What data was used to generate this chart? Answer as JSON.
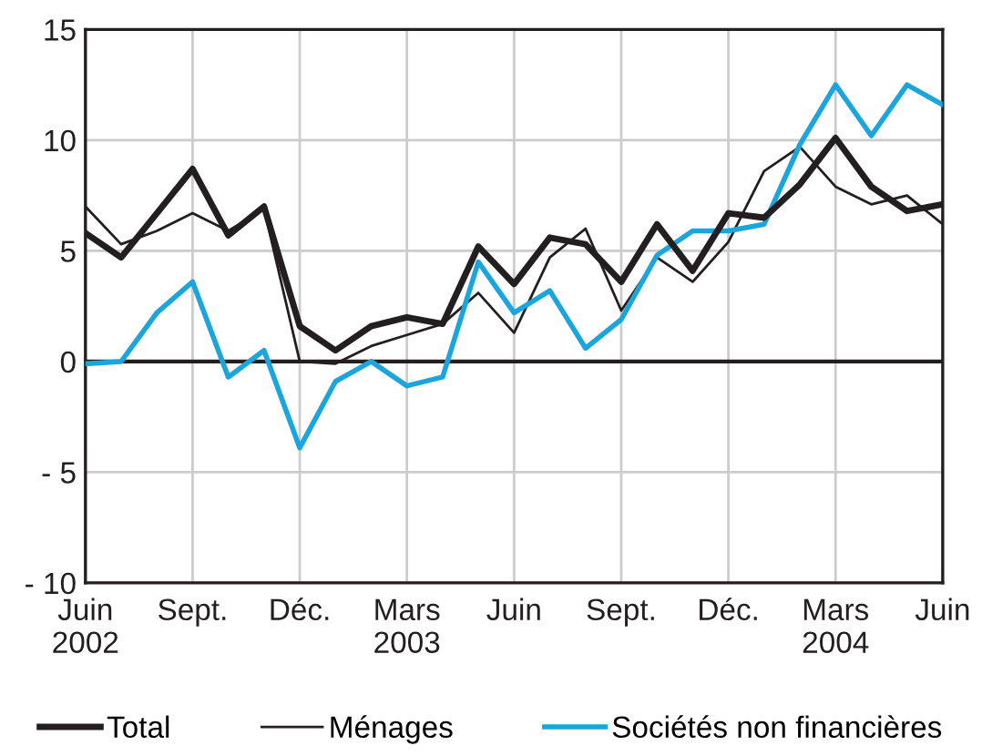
{
  "chart_data": {
    "type": "line",
    "x": [
      "2002-06",
      "2002-07",
      "2002-08",
      "2002-09",
      "2002-10",
      "2002-11",
      "2002-12",
      "2003-01",
      "2003-02",
      "2003-03",
      "2003-04",
      "2003-05",
      "2003-06",
      "2003-07",
      "2003-08",
      "2003-09",
      "2003-10",
      "2003-11",
      "2003-12",
      "2004-01",
      "2004-02",
      "2004-03",
      "2004-04",
      "2004-05",
      "2004-06"
    ],
    "series": [
      {
        "name": "Total",
        "color": "#231f20",
        "values": [
          5.8,
          4.7,
          6.7,
          8.7,
          5.7,
          7.0,
          1.6,
          0.5,
          1.6,
          2.0,
          1.7,
          5.2,
          3.5,
          5.6,
          5.3,
          3.6,
          6.2,
          4.1,
          6.7,
          6.5,
          8.0,
          10.1,
          7.9,
          6.8,
          7.1
        ]
      },
      {
        "name": "Ménages",
        "color": "#231f20",
        "values": [
          7.0,
          5.3,
          5.9,
          6.7,
          5.9,
          6.9,
          0.0,
          -0.1,
          0.7,
          1.2,
          1.7,
          3.1,
          1.3,
          4.7,
          6.0,
          2.3,
          4.7,
          3.6,
          5.4,
          8.6,
          9.7,
          7.9,
          7.1,
          7.5,
          6.2
        ]
      },
      {
        "name": "Sociétés non financières",
        "color": "#1aa6dc",
        "values": [
          -0.1,
          0.0,
          2.2,
          3.6,
          -0.7,
          0.5,
          -3.9,
          -0.9,
          0.0,
          -1.1,
          -0.7,
          4.5,
          2.2,
          3.2,
          0.6,
          1.9,
          4.8,
          5.9,
          5.9,
          6.2,
          9.8,
          12.5,
          10.2,
          12.5,
          11.6
        ]
      }
    ],
    "xlim": [
      "2002-06",
      "2004-06"
    ],
    "xticks": [
      {
        "value": "2002-06",
        "label": "Juin\n2002"
      },
      {
        "value": "2002-09",
        "label": "Sept."
      },
      {
        "value": "2002-12",
        "label": "Déc."
      },
      {
        "value": "2003-03",
        "label": "Mars\n2003"
      },
      {
        "value": "2003-06",
        "label": "Juin"
      },
      {
        "value": "2003-09",
        "label": "Sept."
      },
      {
        "value": "2003-12",
        "label": "Déc."
      },
      {
        "value": "2004-03",
        "label": "Mars\n2004"
      },
      {
        "value": "2004-06",
        "label": "Juin"
      }
    ],
    "ylim": [
      -10,
      15
    ],
    "yticks": [
      {
        "value": -10,
        "label": "- 10"
      },
      {
        "value": -5,
        "label": "- 5"
      },
      0,
      5,
      10,
      15
    ],
    "ref_lines": [
      {
        "axis": "y",
        "value": 0,
        "color": "#231f20"
      }
    ],
    "grid": true,
    "legend": "bottom",
    "marker": "none",
    "line_style": "solid"
  }
}
